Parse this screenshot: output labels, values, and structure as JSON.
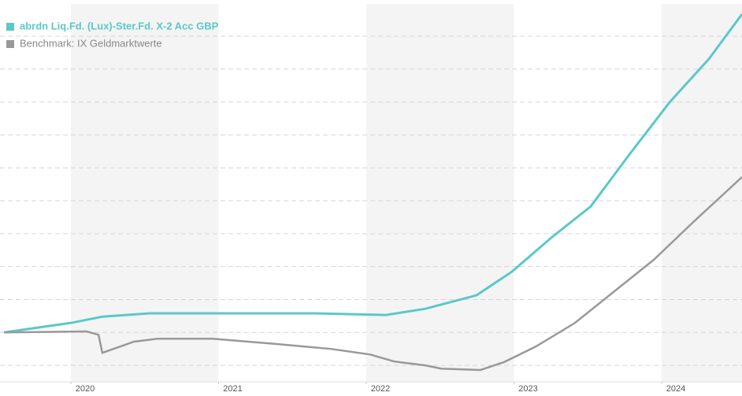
{
  "chart_data": {
    "type": "line",
    "series": [
      {
        "name": "abrdn Liq.Fd. (Lux)-Ster.Fd. X-2 Acc GBP",
        "color": "#5bc8c8",
        "x": [
          2019.547,
          2020,
          2020.213,
          2020.533,
          2021.653,
          2022.133,
          2022.4,
          2022.747,
          2022.987,
          2023.253,
          2023.52,
          2023.787,
          2024.053,
          2024.32,
          2024.544
        ],
        "values": [
          1.0,
          1.29,
          1.48,
          1.58,
          1.58,
          1.53,
          1.72,
          2.13,
          2.85,
          3.88,
          4.83,
          6.44,
          7.99,
          9.31,
          10.67
        ]
      },
      {
        "name": "Benchmark: IX Geldmarktwerte",
        "color": "#999999",
        "x": [
          2019.547,
          2020.107,
          2020.187,
          2020.213,
          2020.427,
          2020.587,
          2020.96,
          2021.387,
          2021.76,
          2022.027,
          2022.187,
          2022.4,
          2022.507,
          2022.773,
          2022.933,
          2023.147,
          2023.413,
          2023.68,
          2023.947,
          2024.213,
          2024.544
        ],
        "values": [
          1.0,
          1.03,
          0.93,
          0.38,
          0.72,
          0.81,
          0.81,
          0.65,
          0.5,
          0.33,
          0.12,
          0,
          -0.1,
          -0.14,
          0.1,
          0.57,
          1.29,
          2.25,
          3.21,
          4.35,
          5.72
        ]
      }
    ],
    "xlim": [
      2019.52,
      2024.544
    ],
    "xticks": [
      2020,
      2021,
      2022,
      2023,
      2024
    ],
    "ylim": [
      -0.5,
      11.1
    ],
    "yticks": [
      0,
      1,
      2,
      3,
      4,
      5,
      6,
      7,
      8,
      9,
      10
    ],
    "grid": true
  }
}
